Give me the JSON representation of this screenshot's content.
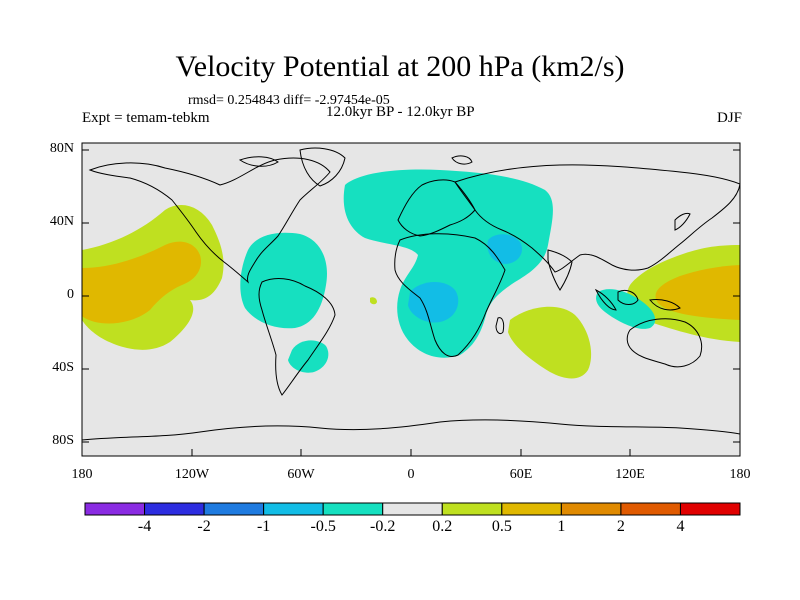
{
  "title": "Velocity Potential at 200 hPa (km2/s)",
  "stats": "rmsd= 0.254843 diff= -2.97454e-05",
  "expt_label": "Expt = temam-tebkm",
  "period_label": "12.0kyr BP - 12.0kyr BP",
  "season": "DJF",
  "y_ticks": [
    "80N",
    "40N",
    "0",
    "40S",
    "80S"
  ],
  "x_ticks": [
    "180",
    "120W",
    "60W",
    "0",
    "60E",
    "120E",
    "180"
  ],
  "colorbar": {
    "colors": [
      "#8a2be2",
      "#2d2de0",
      "#1f7be0",
      "#12bde6",
      "#16e0c0",
      "#e6e6e6",
      "#bfe020",
      "#e0b800",
      "#e08a00",
      "#e05a00",
      "#e00000"
    ],
    "labels": [
      "-4",
      "-2",
      "-1",
      "-0.5",
      "-0.2",
      "0.2",
      "0.5",
      "1",
      "2",
      "4"
    ]
  },
  "colors": {
    "ocean_bg": "#e6e6e6",
    "negative_light": "#16e0c0",
    "negative_mid": "#12bde6",
    "positive_light": "#bfe020",
    "positive_mid": "#e0b800",
    "coast": "#000000"
  }
}
